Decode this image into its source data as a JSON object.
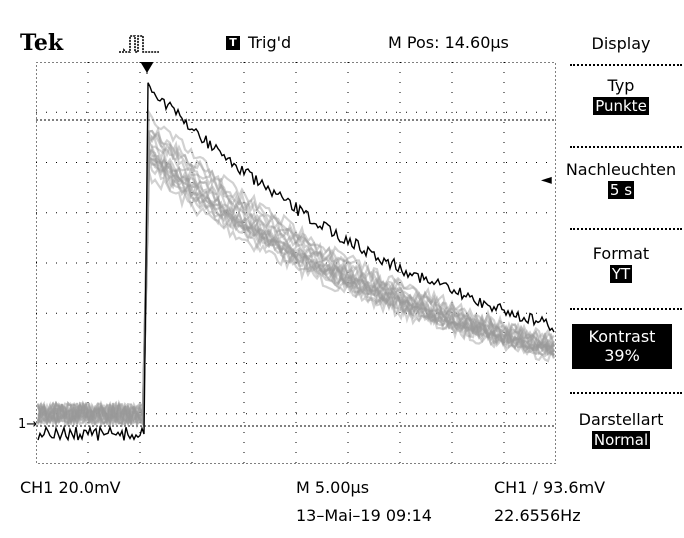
{
  "header": {
    "brand": "Tek",
    "trigger_box": "T",
    "trigger_state": "Trig'd",
    "m_pos": "M Pos: 14.60µs"
  },
  "menu": {
    "title": "Display",
    "typ": {
      "label": "Typ",
      "value": "Punkte"
    },
    "nachleuchten": {
      "label": "Nachleuchten",
      "value": "5 s"
    },
    "format": {
      "label": "Format",
      "value": "YT"
    },
    "kontrast": {
      "label": "Kontrast",
      "value": "39%"
    },
    "darstellart": {
      "label": "Darstellart",
      "value": "Normal"
    }
  },
  "footer": {
    "ch1_scale": "CH1  20.0mV",
    "timebase": "M 5.00µs",
    "trigger_info": "CH1 ∕ 93.6mV",
    "datetime": "13–Mai–19 09:14",
    "frequency": "22.6556Hz"
  },
  "ch1_marker": "1→",
  "colors": {
    "trace": "#000000",
    "persistence": "#9a9a9a",
    "grid": "#000000"
  },
  "icons": [
    "trigger-pulse-icon",
    "trigger-position-icon",
    "menu-pointer-arrow-icon"
  ]
}
